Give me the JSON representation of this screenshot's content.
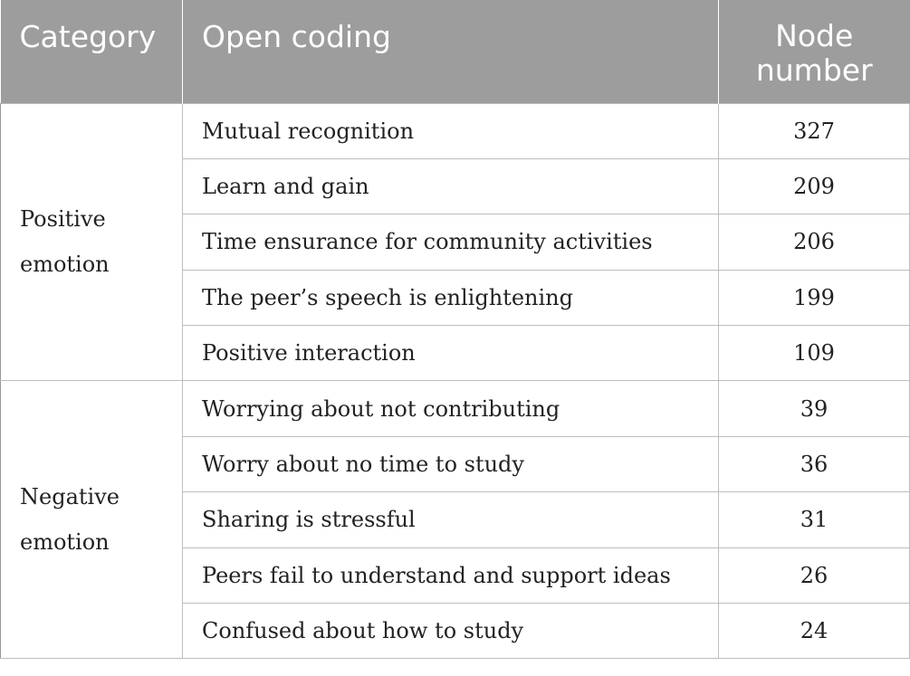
{
  "headers": {
    "category": "Category",
    "open_coding": "Open coding",
    "node_number_line1": "Node",
    "node_number_line2": "number"
  },
  "groups": [
    {
      "category_line1": "Positive",
      "category_line2": "emotion",
      "rows": [
        {
          "coding": "Mutual recognition",
          "count": "327"
        },
        {
          "coding": "Learn and gain",
          "count": "209"
        },
        {
          "coding": "Time ensurance for community activities",
          "count": "206"
        },
        {
          "coding": "The peer’s speech is enlightening",
          "count": "199"
        },
        {
          "coding": "Positive interaction",
          "count": "109"
        }
      ]
    },
    {
      "category_line1": "Negative",
      "category_line2": "emotion",
      "rows": [
        {
          "coding": "Worrying about not contributing",
          "count": "39"
        },
        {
          "coding": "Worry about no time to study",
          "count": "36"
        },
        {
          "coding": "Sharing is stressful",
          "count": "31"
        },
        {
          "coding": "Peers fail to understand and support ideas",
          "count": "26"
        },
        {
          "coding": "Confused about how to study",
          "count": "24"
        }
      ]
    }
  ]
}
